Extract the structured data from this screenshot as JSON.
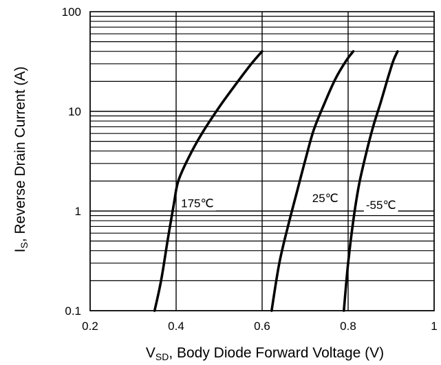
{
  "chart_data": {
    "type": "line",
    "xlabel": {
      "base": "V",
      "sub": "SD",
      "rest": ", Body Diode Forward Voltage (V)"
    },
    "ylabel": {
      "base": "I",
      "sub": "S",
      "rest": ", Reverse Drain Current (A)"
    },
    "xlim": [
      0.2,
      1.0
    ],
    "ylim": [
      0.1,
      100
    ],
    "y_scale": "log",
    "grid": true,
    "x_ticks": [
      0.2,
      0.4,
      0.6,
      0.8,
      1.0
    ],
    "x_tick_labels": [
      "0.2",
      "0.4",
      "0.6",
      "0.8",
      "1"
    ],
    "y_ticks": [
      0.1,
      1,
      10,
      100
    ],
    "y_tick_labels": [
      "0.1",
      "1",
      "10",
      "100"
    ],
    "series": [
      {
        "name": "175℃",
        "x": [
          0.35,
          0.365,
          0.38,
          0.395,
          0.405,
          0.43,
          0.46,
          0.5,
          0.54,
          0.575,
          0.6
        ],
        "y": [
          0.1,
          0.2,
          0.5,
          1.2,
          2.0,
          3.5,
          6.0,
          11.0,
          19.0,
          30.0,
          40.0
        ]
      },
      {
        "name": "25℃",
        "x": [
          0.622,
          0.64,
          0.66,
          0.68,
          0.7,
          0.72,
          0.745,
          0.77,
          0.795,
          0.812
        ],
        "y": [
          0.1,
          0.3,
          0.7,
          1.5,
          3.2,
          6.5,
          12.0,
          21.0,
          32.0,
          40.0
        ]
      },
      {
        "name": "-55℃",
        "x": [
          0.79,
          0.8,
          0.812,
          0.825,
          0.84,
          0.858,
          0.875,
          0.893,
          0.905,
          0.915
        ],
        "y": [
          0.1,
          0.3,
          0.8,
          1.8,
          3.5,
          7.0,
          12.0,
          22.0,
          32.0,
          40.0
        ]
      }
    ],
    "curve_labels": [
      {
        "text": "175℃",
        "x": 0.405,
        "y": 1.2
      },
      {
        "text": "25℃",
        "x": 0.71,
        "y": 1.35
      },
      {
        "text": "-55℃",
        "x": 0.835,
        "y": 1.15
      }
    ]
  },
  "colors": {
    "line": "#000000",
    "grid": "#000000",
    "background": "#ffffff"
  }
}
